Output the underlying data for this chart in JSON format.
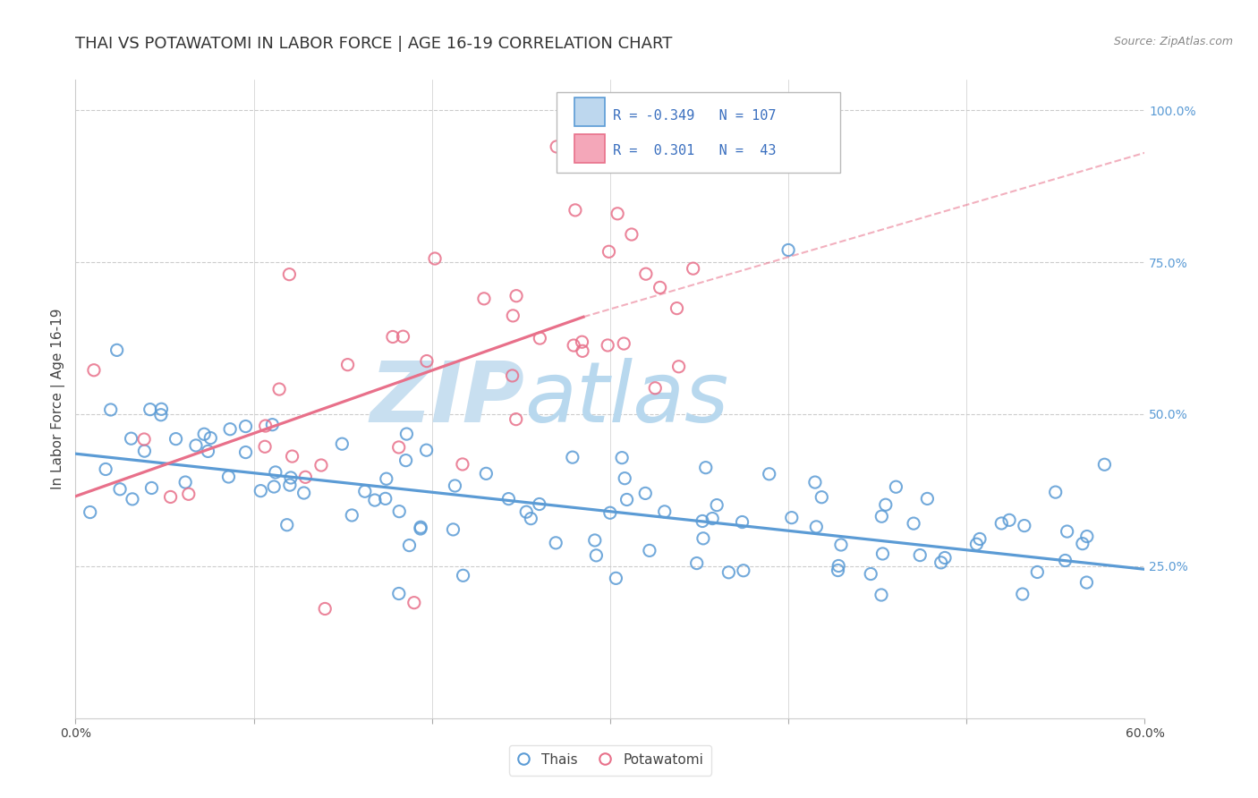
{
  "title": "THAI VS POTAWATOMI IN LABOR FORCE | AGE 16-19 CORRELATION CHART",
  "source": "Source: ZipAtlas.com",
  "ylabel": "In Labor Force | Age 16-19",
  "xlim": [
    0.0,
    0.6
  ],
  "ylim": [
    0.0,
    1.05
  ],
  "x_tick_positions": [
    0.0,
    0.1,
    0.2,
    0.3,
    0.4,
    0.5,
    0.6
  ],
  "x_tick_labels": [
    "0.0%",
    "",
    "",
    "",
    "",
    "",
    "60.0%"
  ],
  "y_tick_vals_right": [
    0.25,
    0.5,
    0.75,
    1.0
  ],
  "y_tick_labels_right": [
    "25.0%",
    "50.0%",
    "75.0%",
    "100.0%"
  ],
  "blue_color": "#5B9BD5",
  "pink_color": "#E8708A",
  "blue_fill": "#BDD7EE",
  "pink_fill": "#F4A7B9",
  "legend_text_color": "#3A6FBF",
  "legend_N_color": "#333333",
  "blue_trend": [
    0.0,
    0.435,
    0.6,
    0.245
  ],
  "pink_trend_solid": [
    0.0,
    0.365,
    0.285,
    0.66
  ],
  "pink_trend_dashed": [
    0.285,
    0.66,
    0.6,
    0.93
  ],
  "background_color": "#FFFFFF",
  "grid_color": "#CCCCCC",
  "title_fontsize": 13,
  "label_fontsize": 11,
  "tick_fontsize": 10,
  "source_fontsize": 9,
  "watermark_zip": "ZIP",
  "watermark_atlas": "atlas",
  "watermark_color": "#C8DFF0",
  "watermark_fontsize": 68
}
